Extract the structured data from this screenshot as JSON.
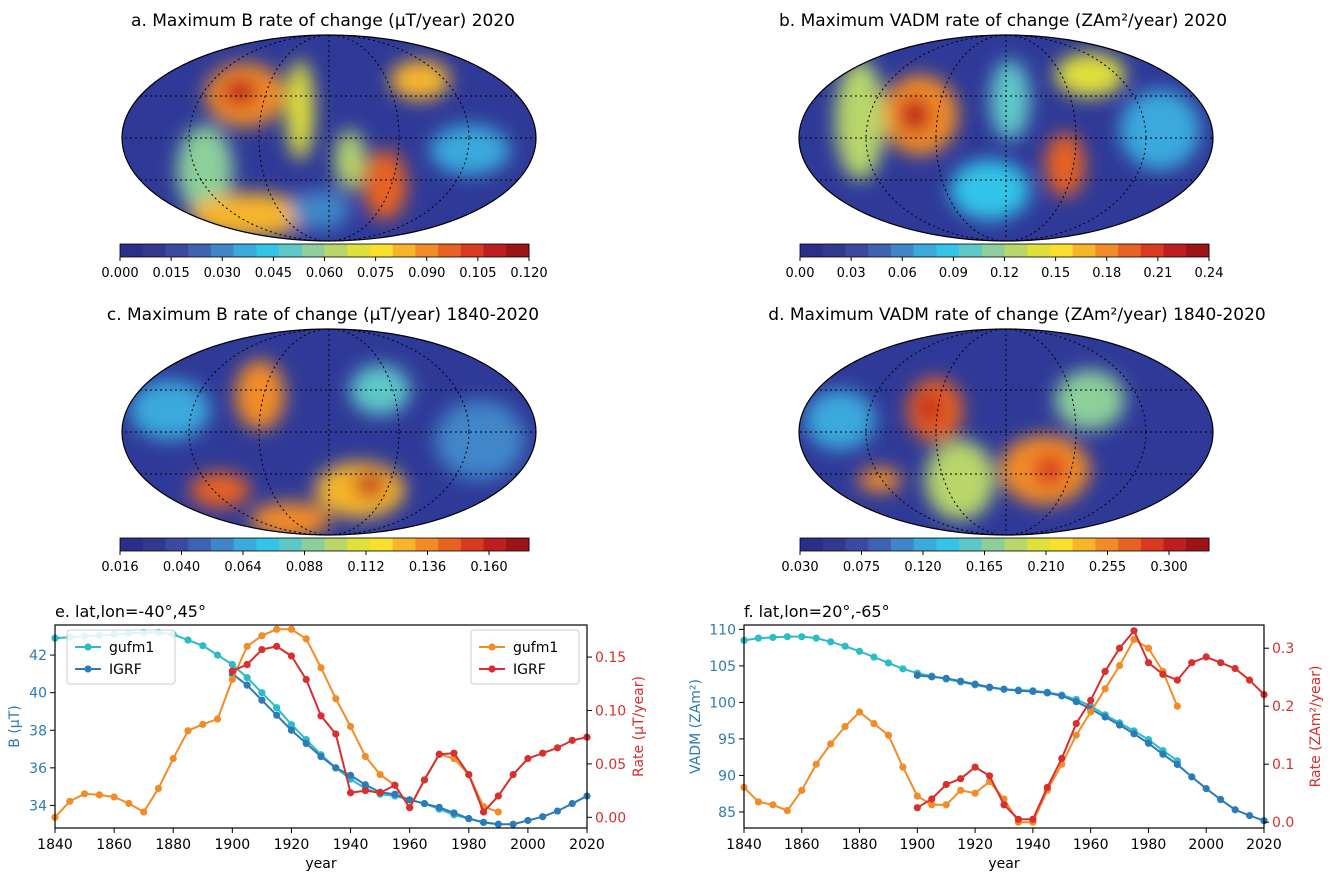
{
  "maps": [
    {
      "title": "a. Maximum B rate of change (μT/year) 2020",
      "ticks": [
        "0.000",
        "0.015",
        "0.030",
        "0.045",
        "0.060",
        "0.075",
        "0.090",
        "0.105",
        "0.120"
      ]
    },
    {
      "title": "b. Maximum VADM rate of change (ZAm²/year) 2020",
      "ticks": [
        "0.00",
        "0.03",
        "0.06",
        "0.09",
        "0.12",
        "0.15",
        "0.18",
        "0.21",
        "0.24"
      ]
    },
    {
      "title": "c. Maximum B rate of change (μT/year) 1840-2020",
      "ticks": [
        "0.016",
        "0.040",
        "0.064",
        "0.088",
        "0.112",
        "0.136",
        "0.160"
      ]
    },
    {
      "title": "d. Maximum VADM rate of change (ZAm²/year) 1840-2020",
      "ticks": [
        "0.030",
        "0.075",
        "0.120",
        "0.165",
        "0.210",
        "0.255",
        "0.300"
      ]
    }
  ],
  "colormap": [
    "#2b2f8c",
    "#33388f",
    "#3a4aa0",
    "#3f63b3",
    "#3f86c8",
    "#3aa9dc",
    "#33c4e8",
    "#5ec8c8",
    "#8dcf9a",
    "#b8d66a",
    "#dfe03a",
    "#fbe02b",
    "#f7b52a",
    "#f28c27",
    "#e86224",
    "#d93a20",
    "#be1e1d",
    "#9c1318"
  ],
  "chart_data": [
    {
      "type": "line",
      "title": "e. lat,lon=-40°,45°",
      "xlabel": "year",
      "ylabel_left": "B (μT)",
      "ylabel_right": "Rate (μT/year)",
      "xlim": [
        1840,
        2020
      ],
      "ylim_left": [
        32.8,
        43.6
      ],
      "ylim_right": [
        -0.01,
        0.18
      ],
      "xticks": [
        1840,
        1860,
        1880,
        1900,
        1920,
        1940,
        1960,
        1980,
        2000,
        2020
      ],
      "yticks_left": [
        34,
        36,
        38,
        40,
        42
      ],
      "yticks_right": [
        0.0,
        0.05,
        0.1,
        0.15
      ],
      "legend_left": {
        "placement": "top-left",
        "entries": [
          "gufm1",
          "IGRF"
        ]
      },
      "legend_right": {
        "placement": "top-right",
        "entries": [
          "gufm1",
          "IGRF"
        ]
      },
      "series": [
        {
          "name": "gufm1",
          "axis": "left",
          "color": "#2bbcc9",
          "x": [
            1840,
            1845,
            1850,
            1855,
            1860,
            1865,
            1870,
            1875,
            1880,
            1885,
            1890,
            1895,
            1900,
            1905,
            1910,
            1915,
            1920,
            1925,
            1930,
            1935,
            1940,
            1945,
            1950,
            1955,
            1960,
            1965,
            1970,
            1975,
            1980,
            1985,
            1990
          ],
          "y": [
            42.9,
            42.95,
            43.0,
            43.05,
            43.1,
            43.15,
            43.2,
            43.2,
            43.1,
            42.8,
            42.5,
            42.0,
            41.5,
            40.8,
            40.0,
            39.2,
            38.3,
            37.5,
            36.7,
            36.0,
            35.4,
            34.9,
            34.6,
            34.5,
            34.3,
            34.1,
            33.8,
            33.5,
            33.3,
            33.1,
            33.0
          ]
        },
        {
          "name": "IGRF",
          "axis": "left",
          "color": "#2c7bb6",
          "x": [
            1900,
            1905,
            1910,
            1915,
            1920,
            1925,
            1930,
            1935,
            1940,
            1945,
            1950,
            1955,
            1960,
            1965,
            1970,
            1975,
            1980,
            1985,
            1990,
            1995,
            2000,
            2005,
            2010,
            2015,
            2020
          ],
          "y": [
            41.0,
            40.4,
            39.6,
            38.8,
            38.0,
            37.3,
            36.6,
            36.0,
            35.6,
            35.1,
            34.7,
            34.6,
            34.3,
            34.1,
            33.9,
            33.6,
            33.3,
            33.1,
            33.0,
            33.0,
            33.2,
            33.4,
            33.7,
            34.1,
            34.5
          ]
        },
        {
          "name": "gufm1",
          "axis": "right",
          "color": "#f28c28",
          "x": [
            1840,
            1845,
            1850,
            1855,
            1860,
            1865,
            1870,
            1875,
            1880,
            1885,
            1890,
            1895,
            1900,
            1905,
            1910,
            1915,
            1920,
            1925,
            1930,
            1935,
            1940,
            1945,
            1950,
            1955,
            1960,
            1965,
            1970,
            1975,
            1980,
            1985,
            1990
          ],
          "y": [
            0.0,
            0.015,
            0.022,
            0.021,
            0.019,
            0.013,
            0.005,
            0.027,
            0.055,
            0.081,
            0.087,
            0.092,
            0.129,
            0.16,
            0.17,
            0.176,
            0.176,
            0.167,
            0.14,
            0.111,
            0.085,
            0.057,
            0.04,
            0.03,
            0.009,
            0.035,
            0.059,
            0.055,
            0.04,
            0.01,
            0.005
          ]
        },
        {
          "name": "IGRF",
          "axis": "right",
          "color": "#d7302e",
          "x": [
            1900,
            1905,
            1910,
            1915,
            1920,
            1925,
            1930,
            1935,
            1940,
            1945,
            1950,
            1955,
            1960,
            1965,
            1970,
            1975,
            1980,
            1985,
            1990,
            1995,
            2000,
            2005,
            2010,
            2015,
            2020
          ],
          "y": [
            0.137,
            0.143,
            0.157,
            0.16,
            0.151,
            0.129,
            0.095,
            0.078,
            0.023,
            0.025,
            0.023,
            0.03,
            0.009,
            0.035,
            0.059,
            0.06,
            0.04,
            0.005,
            0.02,
            0.04,
            0.055,
            0.06,
            0.065,
            0.072,
            0.075
          ]
        }
      ]
    },
    {
      "type": "line",
      "title": "f. lat,lon=20°,-65°",
      "xlabel": "year",
      "ylabel_left": "VADM (ZAm²)",
      "ylabel_right": "Rate (ZAm²/year)",
      "xlim": [
        1840,
        2020
      ],
      "ylim_left": [
        82.8,
        110.6
      ],
      "ylim_right": [
        -0.01,
        0.34
      ],
      "xticks": [
        1840,
        1860,
        1880,
        1900,
        1920,
        1940,
        1960,
        1980,
        2000,
        2020
      ],
      "yticks_left": [
        85,
        90,
        95,
        100,
        105,
        110
      ],
      "yticks_right": [
        0.0,
        0.1,
        0.2,
        0.3
      ],
      "series": [
        {
          "name": "gufm1",
          "axis": "left",
          "color": "#2bbcc9",
          "x": [
            1840,
            1845,
            1850,
            1855,
            1860,
            1865,
            1870,
            1875,
            1880,
            1885,
            1890,
            1895,
            1900,
            1905,
            1910,
            1915,
            1920,
            1925,
            1930,
            1935,
            1940,
            1945,
            1950,
            1955,
            1960,
            1965,
            1970,
            1975,
            1980,
            1985,
            1990
          ],
          "y": [
            108.5,
            108.8,
            108.9,
            109.0,
            109.0,
            108.8,
            108.3,
            107.7,
            107.0,
            106.2,
            105.4,
            104.6,
            104.0,
            103.6,
            103.2,
            102.8,
            102.4,
            102.0,
            101.8,
            101.7,
            101.6,
            101.4,
            101.0,
            100.4,
            99.5,
            98.3,
            97.2,
            96.1,
            94.9,
            93.4,
            92.0
          ]
        },
        {
          "name": "IGRF",
          "axis": "left",
          "color": "#2c7bb6",
          "x": [
            1900,
            1905,
            1910,
            1915,
            1920,
            1925,
            1930,
            1935,
            1940,
            1945,
            1950,
            1955,
            1960,
            1965,
            1970,
            1975,
            1980,
            1985,
            1990,
            1995,
            2000,
            2005,
            2010,
            2015,
            2020
          ],
          "y": [
            103.7,
            103.5,
            103.3,
            102.9,
            102.5,
            102.1,
            101.8,
            101.6,
            101.5,
            101.3,
            100.9,
            100.1,
            99.1,
            98.0,
            96.9,
            95.7,
            94.4,
            92.9,
            91.5,
            89.8,
            88.2,
            86.7,
            85.3,
            84.5,
            83.8
          ]
        },
        {
          "name": "gufm1",
          "axis": "right",
          "color": "#f28c28",
          "x": [
            1840,
            1845,
            1850,
            1855,
            1860,
            1865,
            1870,
            1875,
            1880,
            1885,
            1890,
            1895,
            1900,
            1905,
            1910,
            1915,
            1920,
            1925,
            1930,
            1935,
            1940,
            1945,
            1950,
            1955,
            1960,
            1965,
            1970,
            1975,
            1980,
            1985,
            1990
          ],
          "y": [
            0.06,
            0.035,
            0.03,
            0.02,
            0.055,
            0.1,
            0.135,
            0.165,
            0.19,
            0.17,
            0.15,
            0.095,
            0.045,
            0.03,
            0.03,
            0.055,
            0.05,
            0.07,
            0.04,
            0.0,
            0.0,
            0.055,
            0.1,
            0.15,
            0.19,
            0.23,
            0.27,
            0.315,
            0.3,
            0.26,
            0.2
          ]
        },
        {
          "name": "IGRF",
          "axis": "right",
          "color": "#d7302e",
          "x": [
            1900,
            1905,
            1910,
            1915,
            1920,
            1925,
            1930,
            1935,
            1940,
            1945,
            1950,
            1955,
            1960,
            1965,
            1970,
            1975,
            1980,
            1985,
            1990,
            1995,
            2000,
            2005,
            2010,
            2015,
            2020
          ],
          "y": [
            0.025,
            0.04,
            0.065,
            0.075,
            0.095,
            0.08,
            0.03,
            0.005,
            0.005,
            0.06,
            0.11,
            0.17,
            0.21,
            0.26,
            0.3,
            0.33,
            0.275,
            0.255,
            0.245,
            0.275,
            0.285,
            0.275,
            0.265,
            0.245,
            0.22
          ]
        }
      ]
    }
  ]
}
